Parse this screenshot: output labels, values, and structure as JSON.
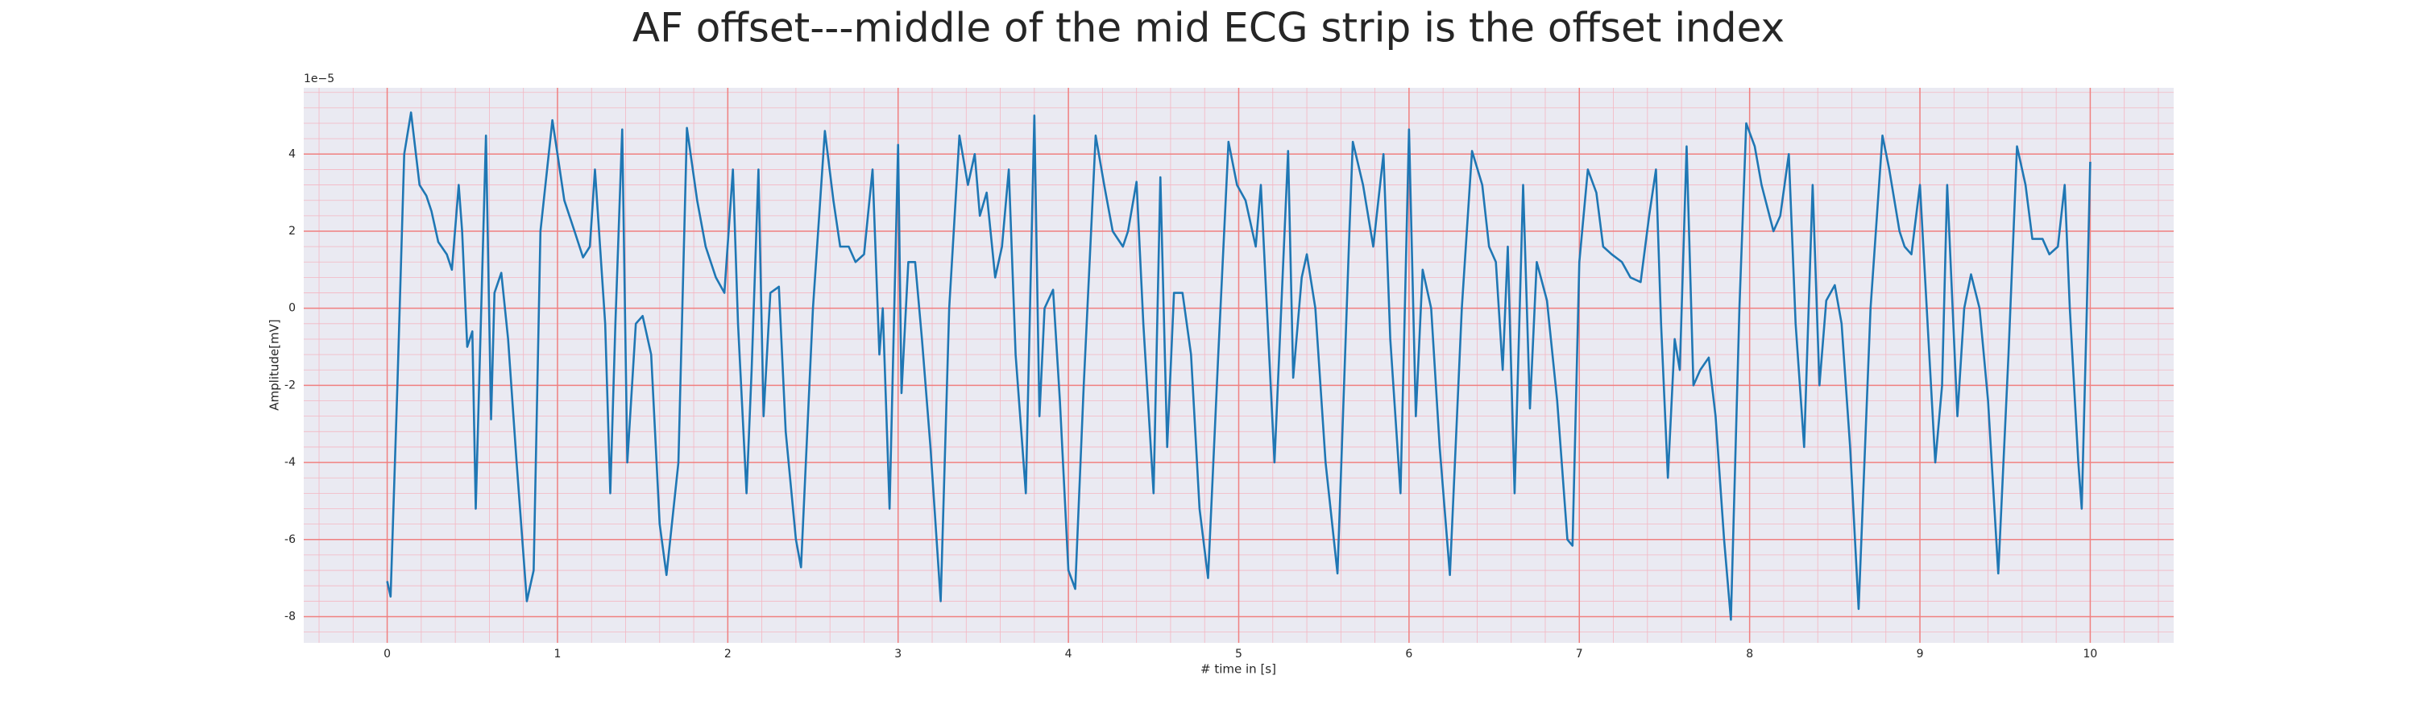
{
  "chart_data": {
    "type": "line",
    "title": "AF offset---middle of the mid ECG strip is the offset index",
    "xlabel": "# time in [s]",
    "ylabel": "Amplitude[mV]",
    "y_offset_label": "1e−5",
    "color": "#1f77b4",
    "grid": true,
    "minor_grid": true,
    "xlim": [
      -0.49,
      10.49
    ],
    "ylim": [
      -8.68,
      5.72
    ],
    "xticks": [
      0,
      1,
      2,
      3,
      4,
      5,
      6,
      7,
      8,
      9,
      10
    ],
    "yticks": [
      -8,
      -6,
      -4,
      -2,
      0,
      2,
      4
    ],
    "x": [
      0.0,
      0.02,
      0.06,
      0.1,
      0.14,
      0.19,
      0.23,
      0.26,
      0.3,
      0.35,
      0.38,
      0.42,
      0.44,
      0.47,
      0.5,
      0.52,
      0.58,
      0.61,
      0.63,
      0.67,
      0.71,
      0.76,
      0.82,
      0.86,
      0.9,
      0.97,
      1.0,
      1.04,
      1.1,
      1.15,
      1.19,
      1.22,
      1.28,
      1.31,
      1.34,
      1.38,
      1.41,
      1.46,
      1.5,
      1.55,
      1.6,
      1.64,
      1.71,
      1.76,
      1.82,
      1.87,
      1.93,
      1.98,
      2.03,
      2.06,
      2.11,
      2.14,
      2.18,
      2.21,
      2.25,
      2.3,
      2.34,
      2.4,
      2.43,
      2.5,
      2.57,
      2.62,
      2.66,
      2.71,
      2.75,
      2.8,
      2.85,
      2.89,
      2.91,
      2.95,
      3.0,
      3.02,
      3.06,
      3.1,
      3.14,
      3.19,
      3.25,
      3.3,
      3.36,
      3.41,
      3.45,
      3.48,
      3.52,
      3.57,
      3.61,
      3.65,
      3.69,
      3.75,
      3.8,
      3.83,
      3.86,
      3.91,
      3.95,
      4.0,
      4.04,
      4.09,
      4.16,
      4.21,
      4.26,
      4.32,
      4.35,
      4.4,
      4.44,
      4.5,
      4.54,
      4.58,
      4.62,
      4.67,
      4.72,
      4.77,
      4.82,
      4.88,
      4.94,
      4.99,
      5.04,
      5.1,
      5.13,
      5.17,
      5.21,
      5.29,
      5.32,
      5.37,
      5.4,
      5.45,
      5.51,
      5.58,
      5.65,
      5.67,
      5.73,
      5.79,
      5.85,
      5.89,
      5.95,
      6.0,
      6.04,
      6.08,
      6.13,
      6.18,
      6.24,
      6.31,
      6.37,
      6.43,
      6.47,
      6.51,
      6.55,
      6.58,
      6.62,
      6.67,
      6.71,
      6.75,
      6.81,
      6.87,
      6.93,
      6.96,
      7.0,
      7.05,
      7.1,
      7.14,
      7.19,
      7.25,
      7.3,
      7.36,
      7.41,
      7.45,
      7.48,
      7.52,
      7.56,
      7.59,
      7.63,
      7.67,
      7.71,
      7.76,
      7.8,
      7.85,
      7.89,
      7.94,
      7.98,
      8.03,
      8.07,
      8.14,
      8.18,
      8.23,
      8.27,
      8.32,
      8.37,
      8.41,
      8.45,
      8.5,
      8.54,
      8.59,
      8.64,
      8.71,
      8.78,
      8.82,
      8.88,
      8.91,
      8.95,
      9.0,
      9.04,
      9.09,
      9.13,
      9.16,
      9.2,
      9.22,
      9.26,
      9.3,
      9.35,
      9.4,
      9.46,
      9.52,
      9.57,
      9.62,
      9.66,
      9.72,
      9.76,
      9.81,
      9.85,
      9.88,
      9.93,
      9.95,
      9.98,
      10.0
    ],
    "values": [
      -7.08,
      -7.48,
      -2.0,
      4.0,
      5.08,
      3.2,
      2.92,
      2.52,
      1.72,
      1.4,
      1.0,
      3.2,
      2.0,
      -1.0,
      -0.6,
      -5.2,
      4.48,
      -2.88,
      0.4,
      0.92,
      -0.8,
      -4.0,
      -7.6,
      -6.8,
      2.0,
      4.88,
      4.0,
      2.8,
      2.0,
      1.32,
      1.6,
      3.6,
      -0.4,
      -4.8,
      -0.4,
      4.64,
      -4.0,
      -0.4,
      -0.2,
      -1.2,
      -5.6,
      -6.92,
      -4.0,
      4.68,
      2.8,
      1.6,
      0.8,
      0.4,
      3.6,
      -0.4,
      -4.8,
      -1.6,
      3.6,
      -2.8,
      0.4,
      0.56,
      -3.2,
      -6.0,
      -6.72,
      0.0,
      4.6,
      2.8,
      1.6,
      1.6,
      1.2,
      1.4,
      3.6,
      -1.2,
      0.0,
      -5.2,
      4.24,
      -2.2,
      1.2,
      1.2,
      -0.8,
      -3.6,
      -7.6,
      0.0,
      4.48,
      3.2,
      4.0,
      2.4,
      3.0,
      0.8,
      1.6,
      3.6,
      -1.2,
      -4.8,
      5.0,
      -2.8,
      0.0,
      0.48,
      -2.4,
      -6.8,
      -7.28,
      -2.0,
      4.48,
      3.2,
      2.0,
      1.6,
      2.0,
      3.28,
      -0.4,
      -4.8,
      3.4,
      -3.6,
      0.4,
      0.4,
      -1.2,
      -5.2,
      -7.0,
      -1.2,
      4.32,
      3.2,
      2.8,
      1.6,
      3.2,
      -0.4,
      -4.0,
      4.08,
      -1.8,
      0.8,
      1.4,
      0.0,
      -4.0,
      -6.88,
      2.0,
      4.32,
      3.2,
      1.6,
      4.0,
      -0.8,
      -4.8,
      4.64,
      -2.8,
      1.0,
      0.0,
      -3.6,
      -6.92,
      0.0,
      4.08,
      3.2,
      1.6,
      1.2,
      -1.6,
      1.6,
      -4.8,
      3.2,
      -2.6,
      1.2,
      0.2,
      -2.4,
      -6.0,
      -6.16,
      1.2,
      3.6,
      3.0,
      1.6,
      1.4,
      1.2,
      0.8,
      0.68,
      2.4,
      3.6,
      -0.4,
      -4.4,
      -0.8,
      -1.6,
      4.2,
      -2.0,
      -1.6,
      -1.28,
      -2.8,
      -6.0,
      -8.08,
      0.0,
      4.8,
      4.2,
      3.2,
      2.0,
      2.4,
      4.0,
      -0.4,
      -3.6,
      3.2,
      -2.0,
      0.2,
      0.6,
      -0.4,
      -3.6,
      -7.8,
      0.0,
      4.48,
      3.6,
      2.0,
      1.6,
      1.4,
      3.2,
      0.0,
      -4.0,
      -2.0,
      3.2,
      -0.8,
      -2.8,
      0.0,
      0.88,
      0.0,
      -2.4,
      -6.88,
      -1.2,
      4.2,
      3.2,
      1.8,
      1.8,
      1.4,
      1.6,
      3.2,
      0.0,
      -4.0,
      -5.2,
      0.0,
      3.8
    ]
  }
}
